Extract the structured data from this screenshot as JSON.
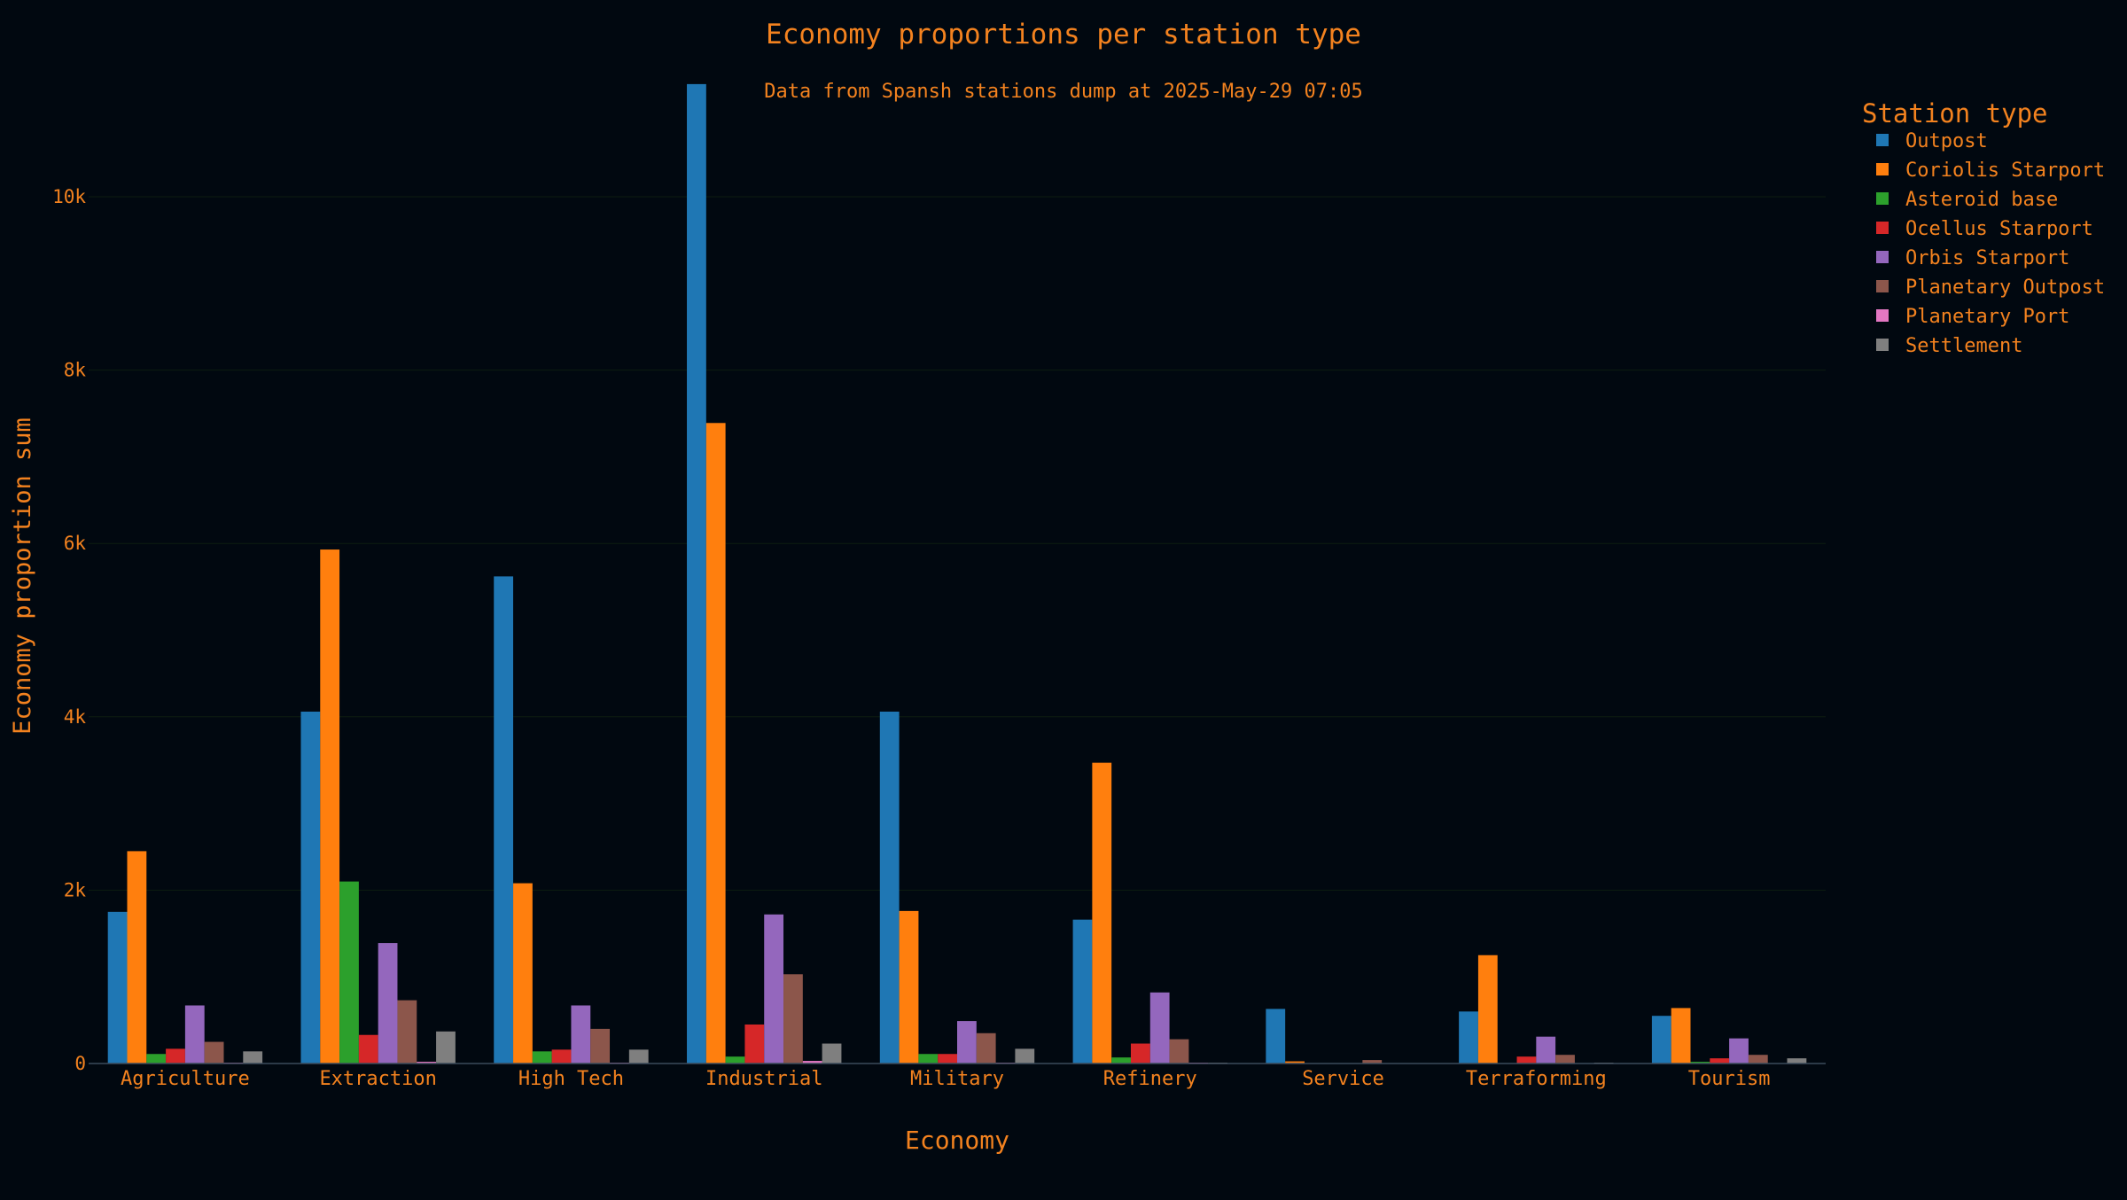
{
  "chart_data": {
    "type": "bar",
    "title": "Economy proportions per station type",
    "subtitle": "Data from Spansh stations dump at 2025-May-29 07:05",
    "xlabel": "Economy",
    "ylabel": "Economy proportion sum",
    "ylim": [
      0,
      11350
    ],
    "yticks": [
      0,
      2000,
      4000,
      6000,
      8000,
      10000
    ],
    "ytick_labels": [
      "0",
      "2k",
      "4k",
      "6k",
      "8k",
      "10k"
    ],
    "grid": true,
    "legend_title": "Station type",
    "legend_position": "right",
    "categories": [
      "Agriculture",
      "Extraction",
      "High Tech",
      "Industrial",
      "Military",
      "Refinery",
      "Service",
      "Terraforming",
      "Tourism"
    ],
    "series": [
      {
        "name": "Outpost",
        "color": "#1f77b4",
        "values": [
          1750,
          4060,
          5620,
          11300,
          4060,
          1660,
          630,
          600,
          550
        ]
      },
      {
        "name": "Coriolis Starport",
        "color": "#ff7f0e",
        "values": [
          2450,
          5930,
          2080,
          7390,
          1760,
          3470,
          25,
          1250,
          640
        ]
      },
      {
        "name": "Asteroid base",
        "color": "#2ca02c",
        "values": [
          110,
          2100,
          140,
          80,
          110,
          70,
          5,
          5,
          20
        ]
      },
      {
        "name": "Ocellus Starport",
        "color": "#d62728",
        "values": [
          170,
          330,
          160,
          450,
          110,
          230,
          5,
          80,
          60
        ]
      },
      {
        "name": "Orbis Starport",
        "color": "#9467bd",
        "values": [
          670,
          1390,
          670,
          1720,
          490,
          820,
          5,
          310,
          290
        ]
      },
      {
        "name": "Planetary Outpost",
        "color": "#8c564b",
        "values": [
          250,
          730,
          400,
          1030,
          350,
          280,
          40,
          100,
          100
        ]
      },
      {
        "name": "Planetary Port",
        "color": "#e377c2",
        "values": [
          10,
          20,
          10,
          30,
          10,
          10,
          0,
          5,
          5
        ]
      },
      {
        "name": "Settlement",
        "color": "#7f7f7f",
        "values": [
          140,
          370,
          160,
          230,
          170,
          10,
          0,
          10,
          60
        ]
      }
    ],
    "colors": {
      "text": "#f3821f",
      "background": "#010810",
      "grid": "#0d1d10",
      "axis": "#3a4a5a"
    }
  }
}
